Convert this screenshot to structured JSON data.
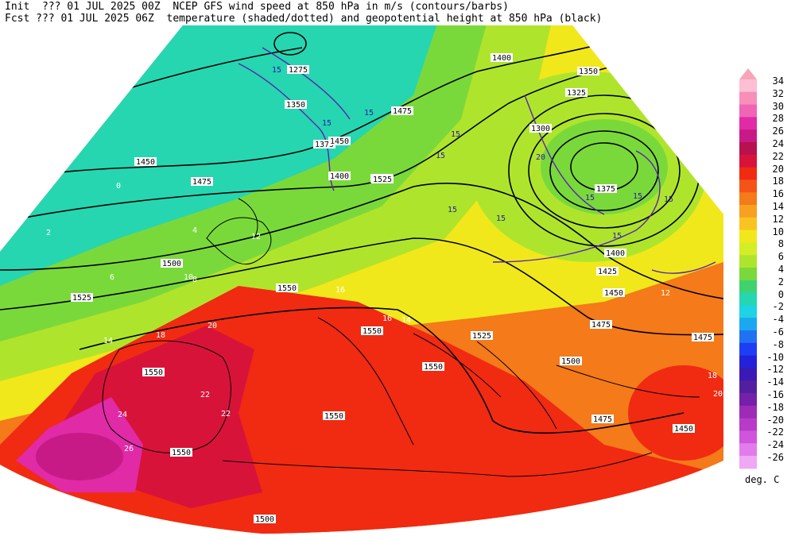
{
  "header": {
    "line1": "Init  ??? 01 JUL 2025 00Z  NCEP GFS wind speed at 850 hPa in m/s (contours/barbs)",
    "line2": "Fcst ??? 01 JUL 2025 06Z  temperature (shaded/dotted) and geopotential height at 850 hPa (black)"
  },
  "colorbar": {
    "unit": "deg. C",
    "levels": [
      {
        "label": "34",
        "color": "#fcbfd3"
      },
      {
        "label": "32",
        "color": "#f78fb9"
      },
      {
        "label": "30",
        "color": "#f064b5"
      },
      {
        "label": "28",
        "color": "#e02aa6"
      },
      {
        "label": "26",
        "color": "#c81a87"
      },
      {
        "label": "24",
        "color": "#b7114f"
      },
      {
        "label": "22",
        "color": "#d8133a"
      },
      {
        "label": "20",
        "color": "#f12a12"
      },
      {
        "label": "18",
        "color": "#f45418"
      },
      {
        "label": "16",
        "color": "#f47a1a"
      },
      {
        "label": "14",
        "color": "#f7a021"
      },
      {
        "label": "12",
        "color": "#f9c421"
      },
      {
        "label": "10",
        "color": "#f1e81b"
      },
      {
        "label": "8",
        "color": "#d3ee25"
      },
      {
        "label": "6",
        "color": "#aee52c"
      },
      {
        "label": "4",
        "color": "#7ad93a"
      },
      {
        "label": "2",
        "color": "#3fd26f"
      },
      {
        "label": "0",
        "color": "#25d6b1"
      },
      {
        "label": "-2",
        "color": "#1ed3e3"
      },
      {
        "label": "-4",
        "color": "#1ba8f0"
      },
      {
        "label": "-6",
        "color": "#2072f2"
      },
      {
        "label": "-8",
        "color": "#1e3ef5"
      },
      {
        "label": "-10",
        "color": "#2322d8"
      },
      {
        "label": "-12",
        "color": "#3a1ab6"
      },
      {
        "label": "-14",
        "color": "#52209e"
      },
      {
        "label": "-16",
        "color": "#7420a8"
      },
      {
        "label": "-18",
        "color": "#9d2bb6"
      },
      {
        "label": "-20",
        "color": "#b83ac8"
      },
      {
        "label": "-22",
        "color": "#cf55dc"
      },
      {
        "label": "-24",
        "color": "#e27ceb"
      },
      {
        "label": "-26",
        "color": "#f0a7f4"
      }
    ]
  },
  "map": {
    "height_labels": [
      {
        "text": "1275"
      },
      {
        "text": "1350"
      },
      {
        "text": "1375"
      },
      {
        "text": "1400"
      },
      {
        "text": "1325"
      },
      {
        "text": "1350"
      },
      {
        "text": "1300"
      },
      {
        "text": "1375"
      },
      {
        "text": "1400"
      },
      {
        "text": "1425"
      },
      {
        "text": "1450"
      },
      {
        "text": "1450"
      },
      {
        "text": "1475"
      },
      {
        "text": "1475"
      },
      {
        "text": "1500"
      },
      {
        "text": "1500"
      },
      {
        "text": "1525"
      },
      {
        "text": "1525"
      },
      {
        "text": "1475"
      },
      {
        "text": "1475"
      },
      {
        "text": "1550"
      },
      {
        "text": "1550"
      },
      {
        "text": "1550"
      },
      {
        "text": "1525"
      },
      {
        "text": "1500"
      },
      {
        "text": "1475"
      },
      {
        "text": "1450"
      },
      {
        "text": "1550"
      },
      {
        "text": "1550"
      },
      {
        "text": "1550"
      },
      {
        "text": "1500"
      },
      {
        "text": "1525"
      },
      {
        "text": "1400"
      },
      {
        "text": "1450"
      },
      {
        "text": "1475"
      }
    ],
    "wind_labels": [
      "15",
      "15",
      "15",
      "15",
      "15",
      "15",
      "15",
      "20",
      "15",
      "15",
      "15",
      "15"
    ],
    "temp_labels": [
      "8",
      "10",
      "12",
      "14",
      "16",
      "18",
      "20",
      "22",
      "24",
      "26",
      "2",
      "4",
      "6",
      "0",
      "12",
      "14",
      "16",
      "18",
      "20",
      "22"
    ]
  }
}
